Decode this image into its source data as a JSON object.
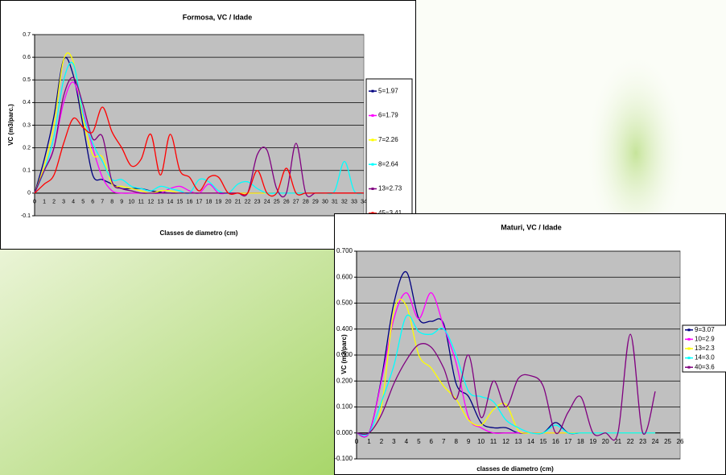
{
  "chart_data": [
    {
      "type": "line",
      "title": "Formosa, VC / Idade",
      "x_label": "Classes de diametro (cm)",
      "y_label": "VC (m3/parc.)",
      "categories": [
        "0",
        "1",
        "2",
        "3",
        "4",
        "5",
        "6",
        "7",
        "8",
        "9",
        "10",
        "11",
        "12",
        "13",
        "14",
        "15",
        "16",
        "17",
        "18",
        "19",
        "20",
        "21",
        "22",
        "23",
        "24",
        "25",
        "26",
        "27",
        "28",
        "29",
        "30",
        "31",
        "32",
        "33",
        "34"
      ],
      "ylim": [
        -0.1,
        0.7
      ],
      "yticks": [
        -0.1,
        0,
        0.1,
        0.2,
        0.3,
        0.4,
        0.5,
        0.6,
        0.7
      ],
      "grid": true,
      "legend": "right",
      "series": [
        {
          "name": "5=1.97",
          "color": "#000080",
          "values": [
            0,
            0.15,
            0.34,
            0.59,
            0.52,
            0.3,
            0.08,
            0.06,
            0.04,
            0.02,
            0.02,
            0.02,
            0.01,
            0.005,
            0,
            0,
            0,
            0,
            0,
            0,
            0,
            0,
            0,
            0,
            0,
            0,
            0,
            0,
            0,
            0,
            0,
            0,
            0,
            0,
            0
          ]
        },
        {
          "name": "6=1.79",
          "color": "#ff00ff",
          "values": [
            0,
            0.1,
            0.2,
            0.4,
            0.49,
            0.36,
            0.2,
            0.07,
            0.01,
            0,
            0,
            0,
            0,
            0,
            0.02,
            0.03,
            0.01,
            0,
            0.04,
            0,
            0,
            0,
            0,
            0,
            0,
            0,
            0,
            0,
            0,
            0,
            0,
            0,
            0,
            0,
            0
          ]
        },
        {
          "name": "7=2.26",
          "color": "#ffff00",
          "values": [
            0,
            0.12,
            0.3,
            0.59,
            0.58,
            0.33,
            0.17,
            0.16,
            0.04,
            0.03,
            0.02,
            0.01,
            0,
            0.01,
            0.01,
            0,
            0,
            0,
            0,
            0,
            0,
            0,
            0,
            0,
            0,
            0,
            0,
            0,
            0,
            0,
            0,
            0,
            0,
            0,
            0
          ]
        },
        {
          "name": "8=2.64",
          "color": "#00ffff",
          "values": [
            0,
            0.1,
            0.25,
            0.5,
            0.57,
            0.35,
            0.22,
            0.14,
            0.06,
            0.06,
            0.03,
            0.02,
            0.01,
            0.03,
            0.02,
            0.01,
            0,
            0.06,
            0.05,
            0.01,
            0,
            0.04,
            0.05,
            0.02,
            0,
            0,
            0,
            0,
            0,
            0,
            0,
            0.01,
            0.14,
            0.01,
            0
          ]
        },
        {
          "name": "13=2.73",
          "color": "#800080",
          "values": [
            0,
            0.1,
            0.2,
            0.43,
            0.51,
            0.39,
            0.24,
            0.25,
            0.05,
            0.02,
            0.01,
            0,
            0,
            0,
            0,
            0,
            0,
            0,
            0,
            0,
            0,
            0,
            0,
            0.17,
            0.19,
            0.02,
            0,
            0.22,
            0,
            0,
            0,
            0,
            0,
            0,
            0
          ]
        },
        {
          "name": "45=3.41",
          "color": "#ff0000",
          "values": [
            0,
            0.04,
            0.08,
            0.22,
            0.33,
            0.29,
            0.27,
            0.38,
            0.27,
            0.2,
            0.12,
            0.15,
            0.26,
            0.08,
            0.26,
            0.1,
            0.07,
            0.01,
            0.07,
            0.07,
            0,
            0,
            0,
            0.1,
            0,
            0,
            0.11,
            0,
            0,
            0,
            0,
            0,
            0,
            0,
            0
          ]
        }
      ]
    },
    {
      "type": "line",
      "title": "Maturi, VC / Idade",
      "x_label": "classes de diametro (cm)",
      "y_label": "VC (m3/parc)",
      "categories": [
        "0",
        "1",
        "2",
        "3",
        "4",
        "5",
        "6",
        "7",
        "8",
        "9",
        "10",
        "11",
        "12",
        "13",
        "14",
        "15",
        "16",
        "17",
        "18",
        "19",
        "20",
        "21",
        "22",
        "23",
        "24",
        "25",
        "26"
      ],
      "ylim": [
        -0.1,
        0.7
      ],
      "yticks": [
        {
          "value": -0.1,
          "label": "-0.100"
        },
        {
          "value": 0,
          "label": "0.000"
        },
        {
          "value": 0.1,
          "label": "0.100"
        },
        {
          "value": 0.2,
          "label": "0.200"
        },
        {
          "value": 0.3,
          "label": "0.300"
        },
        {
          "value": 0.4,
          "label": "0.400"
        },
        {
          "value": 0.5,
          "label": "0.500"
        },
        {
          "value": 0.6,
          "label": "0.600"
        },
        {
          "value": 0.7,
          "label": "0.700"
        }
      ],
      "grid": true,
      "legend": "right",
      "series": [
        {
          "name": "9=3.07",
          "color": "#000080",
          "values": [
            0,
            0,
            0.21,
            0.5,
            0.62,
            0.44,
            0.43,
            0.42,
            0.19,
            0.14,
            0.04,
            0.02,
            0.02,
            0,
            0,
            0,
            0.04,
            0,
            0,
            0,
            0,
            0,
            0,
            0,
            0,
            null,
            null
          ]
        },
        {
          "name": "10=2.9",
          "color": "#ff00ff",
          "values": [
            0,
            0,
            0.2,
            0.44,
            0.54,
            0.44,
            0.54,
            0.41,
            0.27,
            0.06,
            0.02,
            0,
            0,
            0,
            0,
            0,
            0,
            0,
            0,
            0,
            0,
            0,
            0,
            0,
            0,
            null,
            null
          ]
        },
        {
          "name": "13=2.3",
          "color": "#ffff00",
          "values": [
            0,
            0,
            0.1,
            0.47,
            0.49,
            0.3,
            0.25,
            0.18,
            0.13,
            0.05,
            0.03,
            0.09,
            0.11,
            0.01,
            0,
            0,
            0,
            0,
            0,
            0,
            0,
            0,
            0,
            0,
            0,
            null,
            null
          ]
        },
        {
          "name": "14=3.0",
          "color": "#00ffff",
          "values": [
            0,
            0,
            0.12,
            0.26,
            0.45,
            0.39,
            0.38,
            0.4,
            0.3,
            0.16,
            0.14,
            0.12,
            0.05,
            0.02,
            0,
            0,
            0.03,
            0,
            0,
            0,
            0,
            0,
            0,
            0,
            0,
            null,
            null
          ]
        },
        {
          "name": "40=3.6",
          "color": "#800080",
          "values": [
            0,
            0,
            0.07,
            0.19,
            0.28,
            0.34,
            0.33,
            0.25,
            0.13,
            0.3,
            0.06,
            0.2,
            0.1,
            0.21,
            0.22,
            0.18,
            0,
            0.08,
            0.14,
            0,
            0,
            0,
            0.38,
            0,
            0.16,
            null,
            null
          ]
        }
      ]
    }
  ]
}
